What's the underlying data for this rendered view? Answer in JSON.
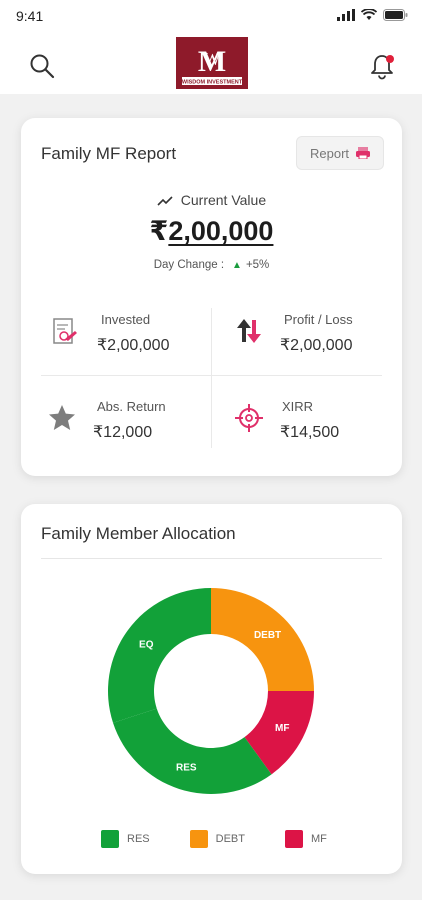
{
  "status_bar": {
    "time": "9:41"
  },
  "header": {
    "logo_text": "WISDOM INVESTMENT",
    "notification_has_badge": true
  },
  "report_card": {
    "title": "Family MF Report",
    "report_button": "Report",
    "current_value_label": "Current Value",
    "current_value_currency": "₹",
    "current_value_amount": "2,00,000",
    "day_change_label": "Day Change :",
    "day_change_value": "+5%",
    "stats": [
      {
        "label": "Invested",
        "value": "₹2,00,000",
        "icon": "invested-icon"
      },
      {
        "label": "Profit / Loss",
        "value": "₹2,00,000",
        "icon": "up-down-arrows-icon"
      },
      {
        "label": "Abs. Return",
        "value": "₹12,000",
        "icon": "star-icon"
      },
      {
        "label": "XIRR",
        "value": "₹14,500",
        "icon": "target-icon"
      }
    ]
  },
  "allocation_card": {
    "title": "Family Member Allocation"
  },
  "chart_data": {
    "type": "pie",
    "donut": true,
    "slices": [
      {
        "label": "DEBT",
        "value": 25,
        "color": "#f7940f"
      },
      {
        "label": "MF",
        "value": 15,
        "color": "#dc1446"
      },
      {
        "label": "RES",
        "value": 30,
        "color": "#12a139"
      },
      {
        "label": "EQ",
        "value": 30,
        "color": "#12a139"
      }
    ],
    "legend": [
      {
        "label": "RES",
        "color": "#12a139"
      },
      {
        "label": "DEBT",
        "color": "#f7940f"
      },
      {
        "label": "MF",
        "color": "#dc1446"
      }
    ],
    "legend_position": "bottom"
  },
  "colors": {
    "positive": "#1a9c3e",
    "accent": "#e0306a",
    "logo_bg": "#8e1a2a"
  }
}
